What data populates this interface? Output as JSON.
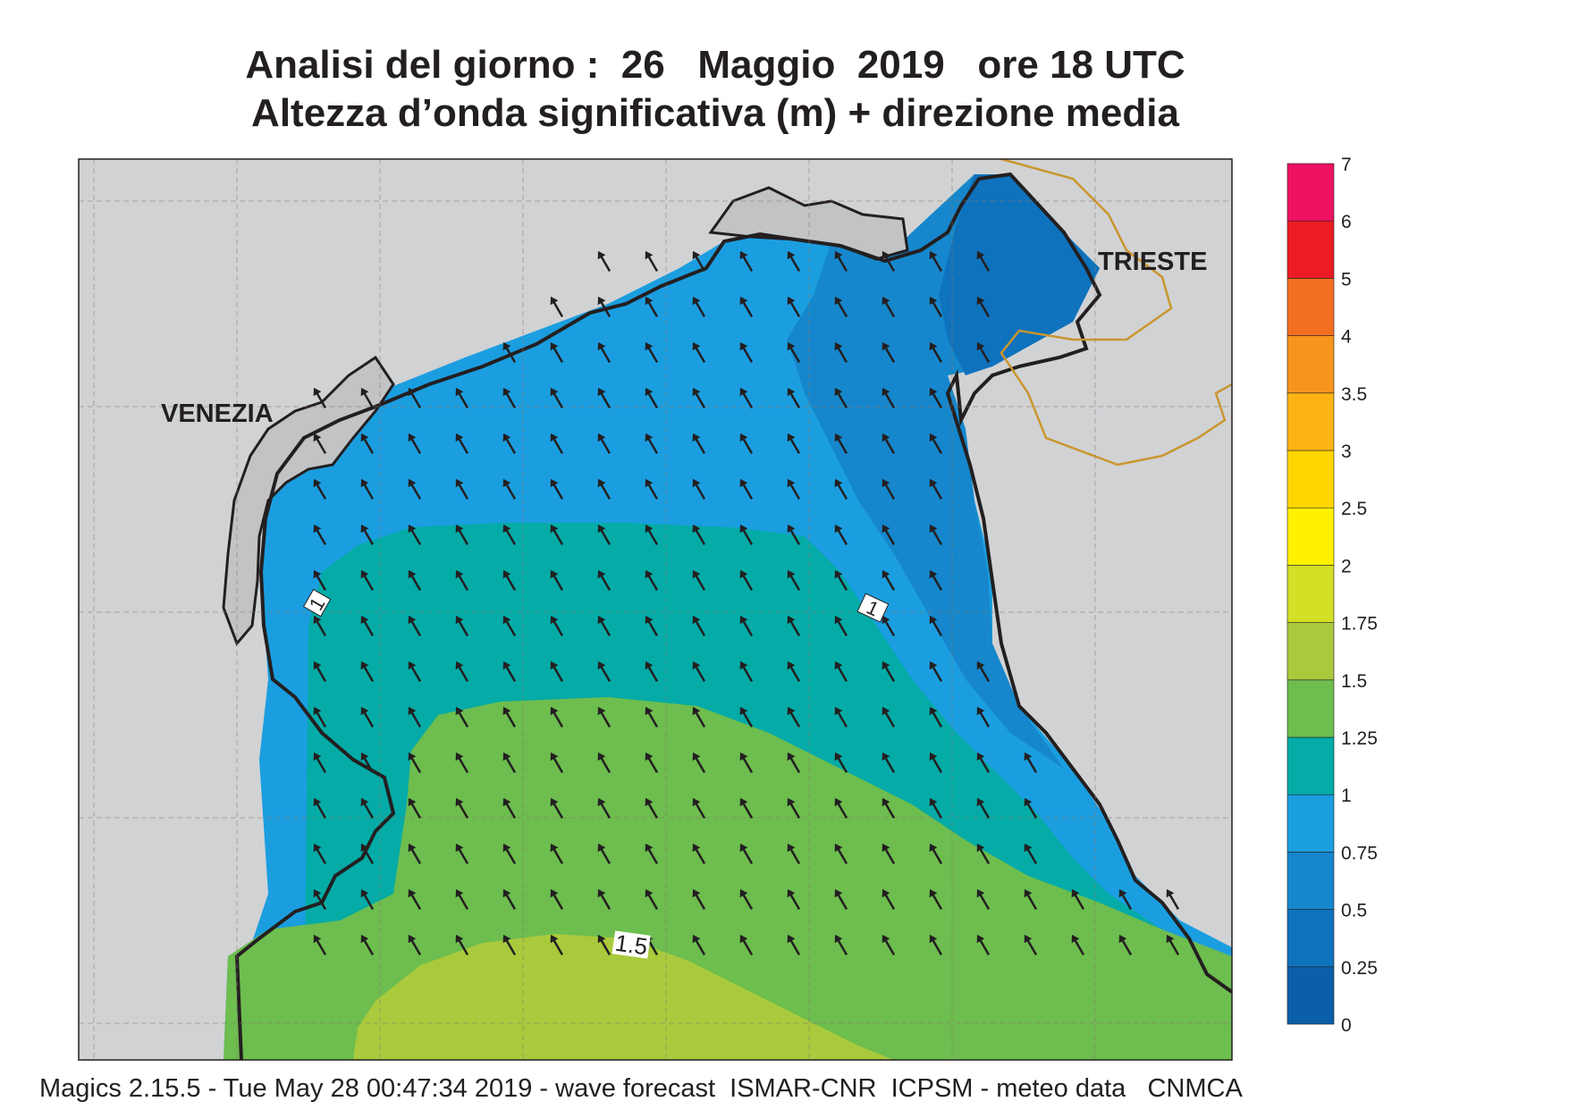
{
  "title": {
    "line1": "Analisi del giorno :  26   Maggio  2019   ore 18 UTC",
    "line2": "Altezza d’onda significativa (m) + direzione media"
  },
  "map": {
    "cities": [
      "VENEZIA",
      "TRIESTE"
    ],
    "contour_labels": [
      "1",
      "1",
      "1.5"
    ],
    "arrow_direction": "north-west",
    "colors": {
      "land": "#d1d2d4",
      "coast": "#231f20",
      "border": "#c9962e"
    }
  },
  "legend": {
    "levels": [
      "0",
      "0.25",
      "0.5",
      "0.75",
      "1",
      "1.25",
      "1.5",
      "1.75",
      "2",
      "2.5",
      "3",
      "3.5",
      "4",
      "5",
      "6",
      "7"
    ],
    "colors": [
      "#0a5fa8",
      "#0f72bd",
      "#1687cc",
      "#1b9ee0",
      "#04aba7",
      "#6dbd4f",
      "#a9ca3c",
      "#d4df26",
      "#fff100",
      "#ffd600",
      "#fcb414",
      "#f7941d",
      "#f26f21",
      "#ec1c24",
      "#ed1261"
    ]
  },
  "footer": "Magics 2.15.5 - Tue May 28 00:47:34 2019 - wave forecast  ISMAR-CNR  ICPSM - meteo data   CNMCA"
}
